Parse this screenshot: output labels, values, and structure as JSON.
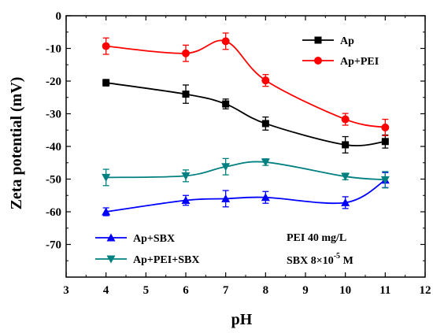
{
  "chart_data": {
    "type": "scatter",
    "xlabel": "pH",
    "ylabel": "Zeta potential (mV)",
    "xlim": [
      3,
      12
    ],
    "ylim": [
      -80,
      0
    ],
    "xticks": [
      "3",
      "4",
      "5",
      "6",
      "7",
      "8",
      "9",
      "10",
      "11",
      "12"
    ],
    "yticks": [
      "0",
      "-10",
      "-20",
      "-30",
      "-40",
      "-50",
      "-60",
      "-70"
    ],
    "grid": false,
    "series": [
      {
        "name": "Ap",
        "color": "#000000",
        "marker": "square",
        "x": [
          4,
          6,
          7,
          8,
          10,
          11
        ],
        "y": [
          -20.5,
          -24,
          -27,
          -33,
          -39.5,
          -38.5
        ],
        "err": [
          1,
          2.8,
          1.5,
          2,
          2.5,
          2
        ]
      },
      {
        "name": "Ap+PEI",
        "color": "#ff0000",
        "marker": "circle",
        "x": [
          4,
          6,
          7,
          8,
          10,
          11
        ],
        "y": [
          -9.3,
          -11.5,
          -7.8,
          -19.8,
          -31.7,
          -34.2
        ],
        "err": [
          2.5,
          2.5,
          2.5,
          1.8,
          1.8,
          2.5
        ]
      },
      {
        "name": "Ap+SBX",
        "color": "#0000ff",
        "marker": "triangle-up",
        "x": [
          4,
          6,
          7,
          8,
          10,
          11
        ],
        "y": [
          -60,
          -56.5,
          -56,
          -55.6,
          -57.2,
          -50.3
        ],
        "err": [
          1.2,
          1.5,
          2.5,
          1.8,
          1.8,
          2.3
        ]
      },
      {
        "name": "Ap+PEI+SBX",
        "color": "#008080",
        "marker": "triangle-down",
        "x": [
          4,
          6,
          7,
          8,
          10,
          11
        ],
        "y": [
          -49.5,
          -49,
          -46.2,
          -44.8,
          -49.2,
          -50.2
        ],
        "err": [
          2.5,
          1.8,
          2.5,
          1,
          1,
          2.5
        ]
      }
    ],
    "legend_top": {
      "placement": "top-right",
      "entries": [
        "Ap",
        "Ap+PEI"
      ]
    },
    "legend_bottom": {
      "placement": "bottom-left",
      "entries": [
        "Ap+SBX",
        "Ap+PEI+SBX"
      ]
    },
    "annotations": {
      "pei": "PEI 40 mg/L",
      "sbx_base": "SBX 8×10",
      "sbx_exp": "-5",
      "sbx_unit": " M"
    }
  }
}
